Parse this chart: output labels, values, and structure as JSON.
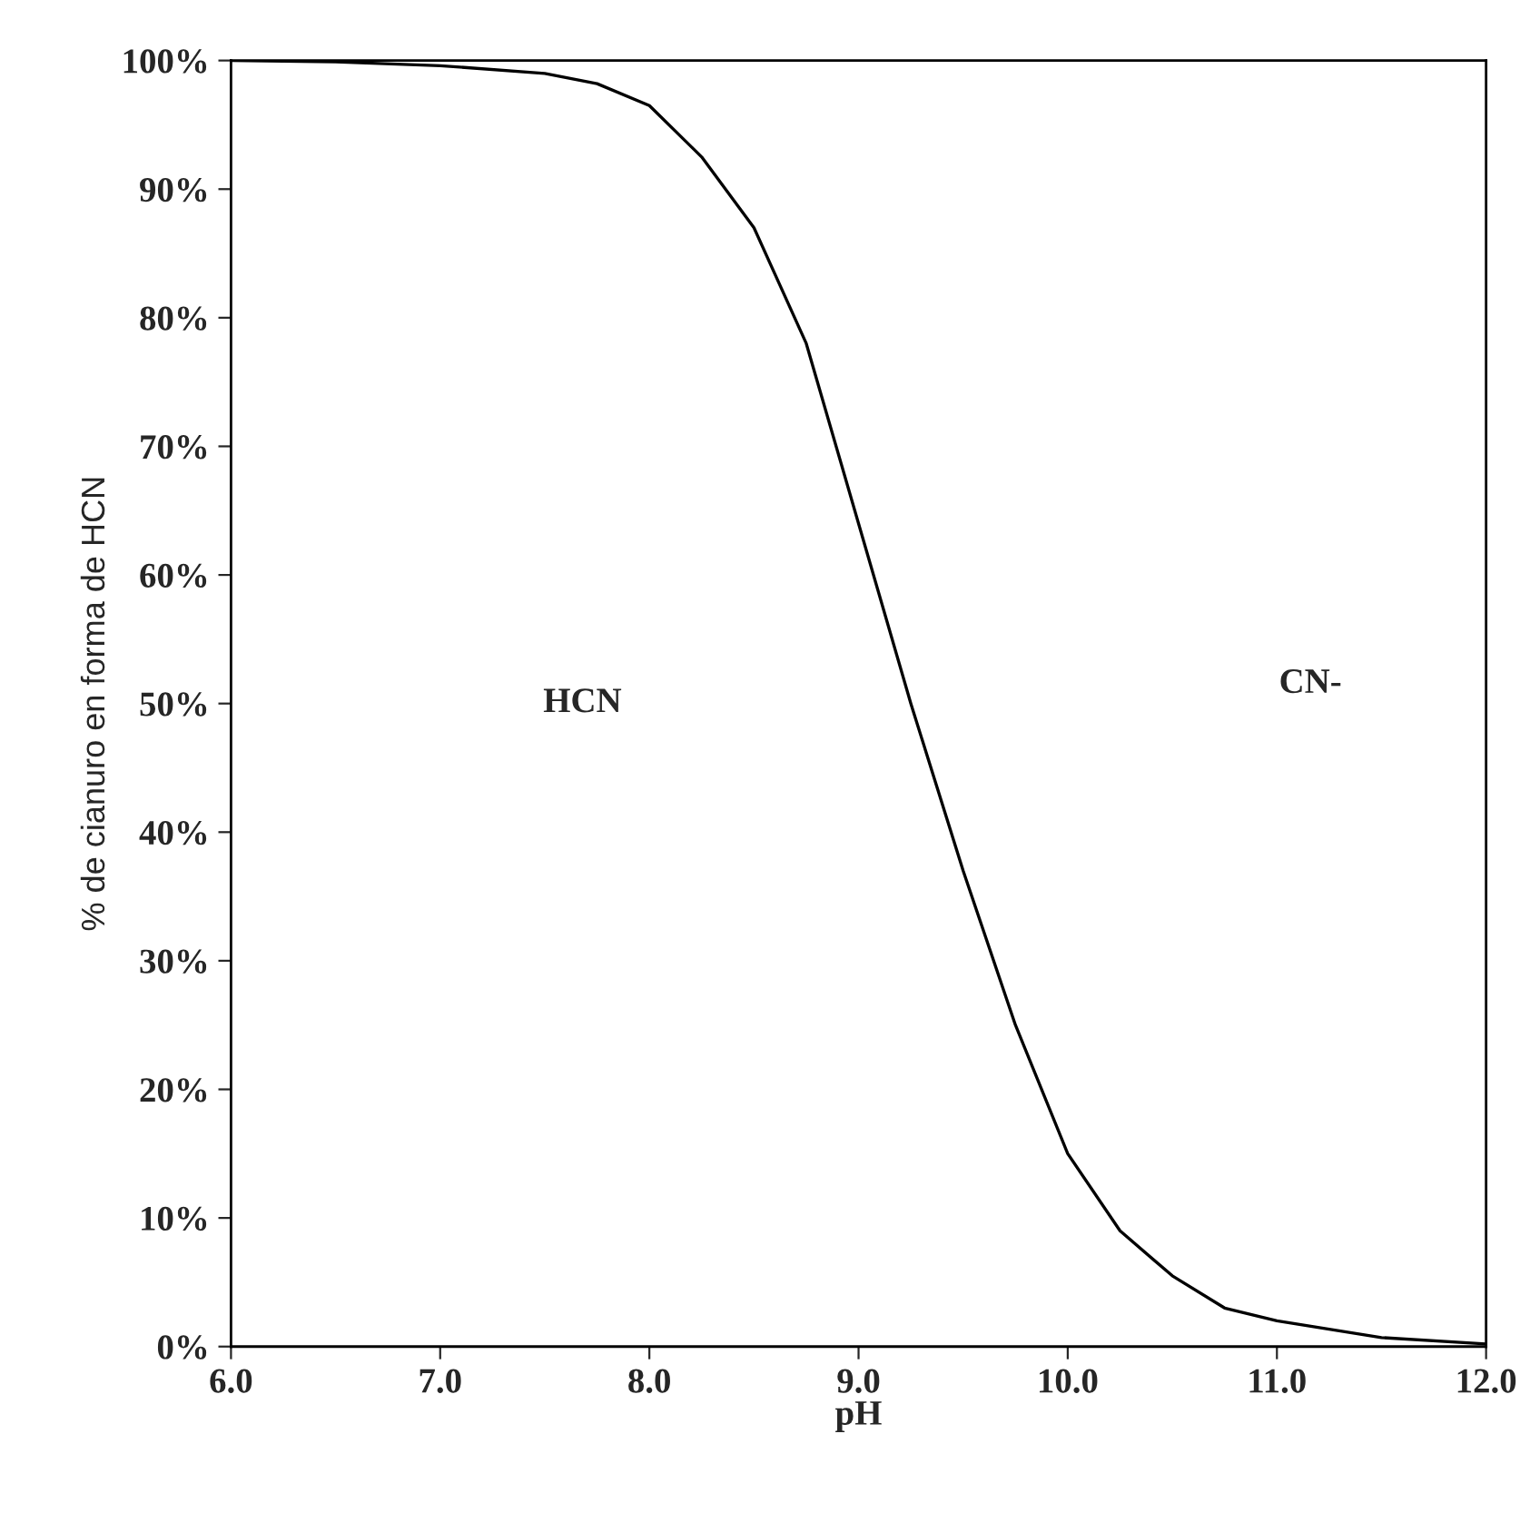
{
  "chart_data": {
    "type": "line",
    "xlabel": "pH",
    "ylabel": "% de cianuro en forma de HCN",
    "x": [
      6.0,
      6.5,
      7.0,
      7.5,
      7.75,
      8.0,
      8.25,
      8.5,
      8.75,
      9.0,
      9.25,
      9.5,
      9.75,
      10.0,
      10.25,
      10.5,
      10.75,
      11.0,
      11.5,
      12.0
    ],
    "series": [
      {
        "color": "#000000",
        "values": [
          100,
          99.9,
          99.6,
          99.0,
          98.2,
          96.5,
          92.5,
          87,
          78,
          64,
          50,
          37,
          25,
          15,
          9,
          5.5,
          3,
          2,
          0.7,
          0.2
        ]
      }
    ],
    "xlim": [
      6.0,
      12.0
    ],
    "xticks": [
      {
        "value": 6,
        "label": "6.0"
      },
      {
        "value": 7,
        "label": "7.0"
      },
      {
        "value": 8,
        "label": "8.0"
      },
      {
        "value": 9,
        "label": "9.0"
      },
      {
        "value": 10,
        "label": "10.0"
      },
      {
        "value": 11,
        "label": "11.0"
      },
      {
        "value": 12,
        "label": "12.0"
      }
    ],
    "ylim": [
      0,
      100
    ],
    "yticks": [
      {
        "value": 0,
        "label": "0%"
      },
      {
        "value": 10,
        "label": "10%"
      },
      {
        "value": 20,
        "label": "20%"
      },
      {
        "value": 30,
        "label": "30%"
      },
      {
        "value": 40,
        "label": "40%"
      },
      {
        "value": 50,
        "label": "50%"
      },
      {
        "value": 60,
        "label": "60%"
      },
      {
        "value": 70,
        "label": "70%"
      },
      {
        "value": 80,
        "label": "80%"
      },
      {
        "value": 90,
        "label": "90%"
      },
      {
        "value": 100,
        "label": "100%"
      }
    ],
    "annotations": [
      "HCN",
      "CN-"
    ],
    "grid": false,
    "legend": false,
    "marker": "none",
    "line_style": "solid"
  }
}
